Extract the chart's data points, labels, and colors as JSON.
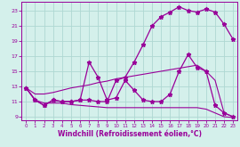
{
  "xlabel": "Windchill (Refroidissement éolien,°C)",
  "bg_color": "#d4f0eb",
  "grid_color": "#aed8d2",
  "line_color": "#990099",
  "x_hours": [
    0,
    1,
    2,
    3,
    4,
    5,
    6,
    7,
    8,
    9,
    10,
    11,
    12,
    13,
    14,
    15,
    16,
    17,
    18,
    19,
    20,
    21,
    22,
    23
  ],
  "series1": [
    12.8,
    11.2,
    10.5,
    11.2,
    11.0,
    11.0,
    11.2,
    11.2,
    11.0,
    11.0,
    13.8,
    14.2,
    16.2,
    18.5,
    21.0,
    22.2,
    22.8,
    23.5,
    23.0,
    22.8,
    23.2,
    22.8,
    21.2,
    19.2
  ],
  "series2": [
    12.8,
    11.2,
    10.5,
    11.2,
    11.0,
    11.0,
    11.2,
    16.2,
    14.2,
    11.2,
    11.5,
    13.8,
    12.5,
    11.2,
    11.0,
    11.0,
    12.0,
    15.0,
    17.2,
    15.5,
    15.0,
    10.5,
    9.5,
    9.0
  ],
  "series3": [
    12.8,
    12.0,
    12.0,
    12.2,
    12.5,
    12.8,
    13.0,
    13.2,
    13.5,
    13.7,
    14.0,
    14.2,
    14.4,
    14.6,
    14.8,
    15.0,
    15.2,
    15.4,
    15.6,
    15.8,
    15.0,
    13.8,
    9.5,
    9.0
  ],
  "series4": [
    12.8,
    11.2,
    10.8,
    10.8,
    10.8,
    10.6,
    10.5,
    10.4,
    10.3,
    10.2,
    10.2,
    10.2,
    10.2,
    10.2,
    10.2,
    10.2,
    10.2,
    10.2,
    10.2,
    10.2,
    10.0,
    9.5,
    9.0,
    8.9
  ],
  "xlim": [
    -0.5,
    23.5
  ],
  "ylim": [
    8.5,
    24.2
  ],
  "yticks": [
    9,
    11,
    13,
    15,
    17,
    19,
    21,
    23
  ],
  "xticks": [
    0,
    1,
    2,
    3,
    4,
    5,
    6,
    7,
    8,
    9,
    10,
    11,
    12,
    13,
    14,
    15,
    16,
    17,
    18,
    19,
    20,
    21,
    22,
    23
  ]
}
